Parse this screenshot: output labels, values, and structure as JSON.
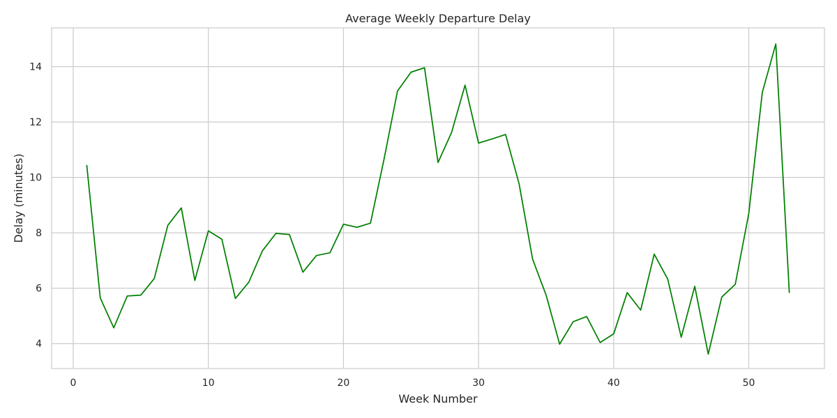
{
  "chart_data": {
    "type": "line",
    "title": "Average Weekly Departure Delay",
    "xlabel": "Week Number",
    "ylabel": "Delay (minutes)",
    "xlim": [
      -1.6,
      55.6
    ],
    "ylim": [
      3.1,
      15.4
    ],
    "xticks": [
      0,
      10,
      20,
      30,
      40,
      50
    ],
    "yticks": [
      4,
      6,
      8,
      10,
      12,
      14
    ],
    "grid": true,
    "colors": {
      "line": "#008000",
      "grid": "#cccccc",
      "frame": "#cccccc"
    },
    "series": [
      {
        "x": [
          1,
          2,
          3,
          4,
          5,
          6,
          7,
          8,
          9,
          10,
          11,
          12,
          13,
          14,
          15,
          16,
          17,
          18,
          19,
          20,
          21,
          22,
          23,
          24,
          25,
          26,
          27,
          28,
          29,
          30,
          31,
          32,
          33,
          34,
          35,
          36,
          37,
          38,
          39,
          40,
          41,
          42,
          43,
          44,
          45,
          46,
          47,
          48,
          49,
          50,
          51,
          52,
          53
        ],
        "values": [
          10.45,
          5.65,
          4.57,
          5.72,
          5.75,
          6.35,
          8.27,
          8.9,
          6.28,
          8.07,
          7.77,
          5.63,
          6.22,
          7.35,
          7.98,
          7.94,
          6.58,
          7.18,
          7.28,
          8.31,
          8.2,
          8.35,
          10.65,
          13.12,
          13.8,
          13.96,
          10.54,
          11.62,
          13.33,
          11.24,
          11.39,
          11.55,
          9.77,
          7.05,
          5.75,
          3.98,
          4.79,
          4.98,
          4.04,
          4.35,
          5.84,
          5.21,
          7.23,
          6.33,
          4.23,
          6.07,
          3.62,
          5.68,
          6.14,
          8.7,
          13.07,
          14.82,
          5.83
        ]
      }
    ]
  }
}
